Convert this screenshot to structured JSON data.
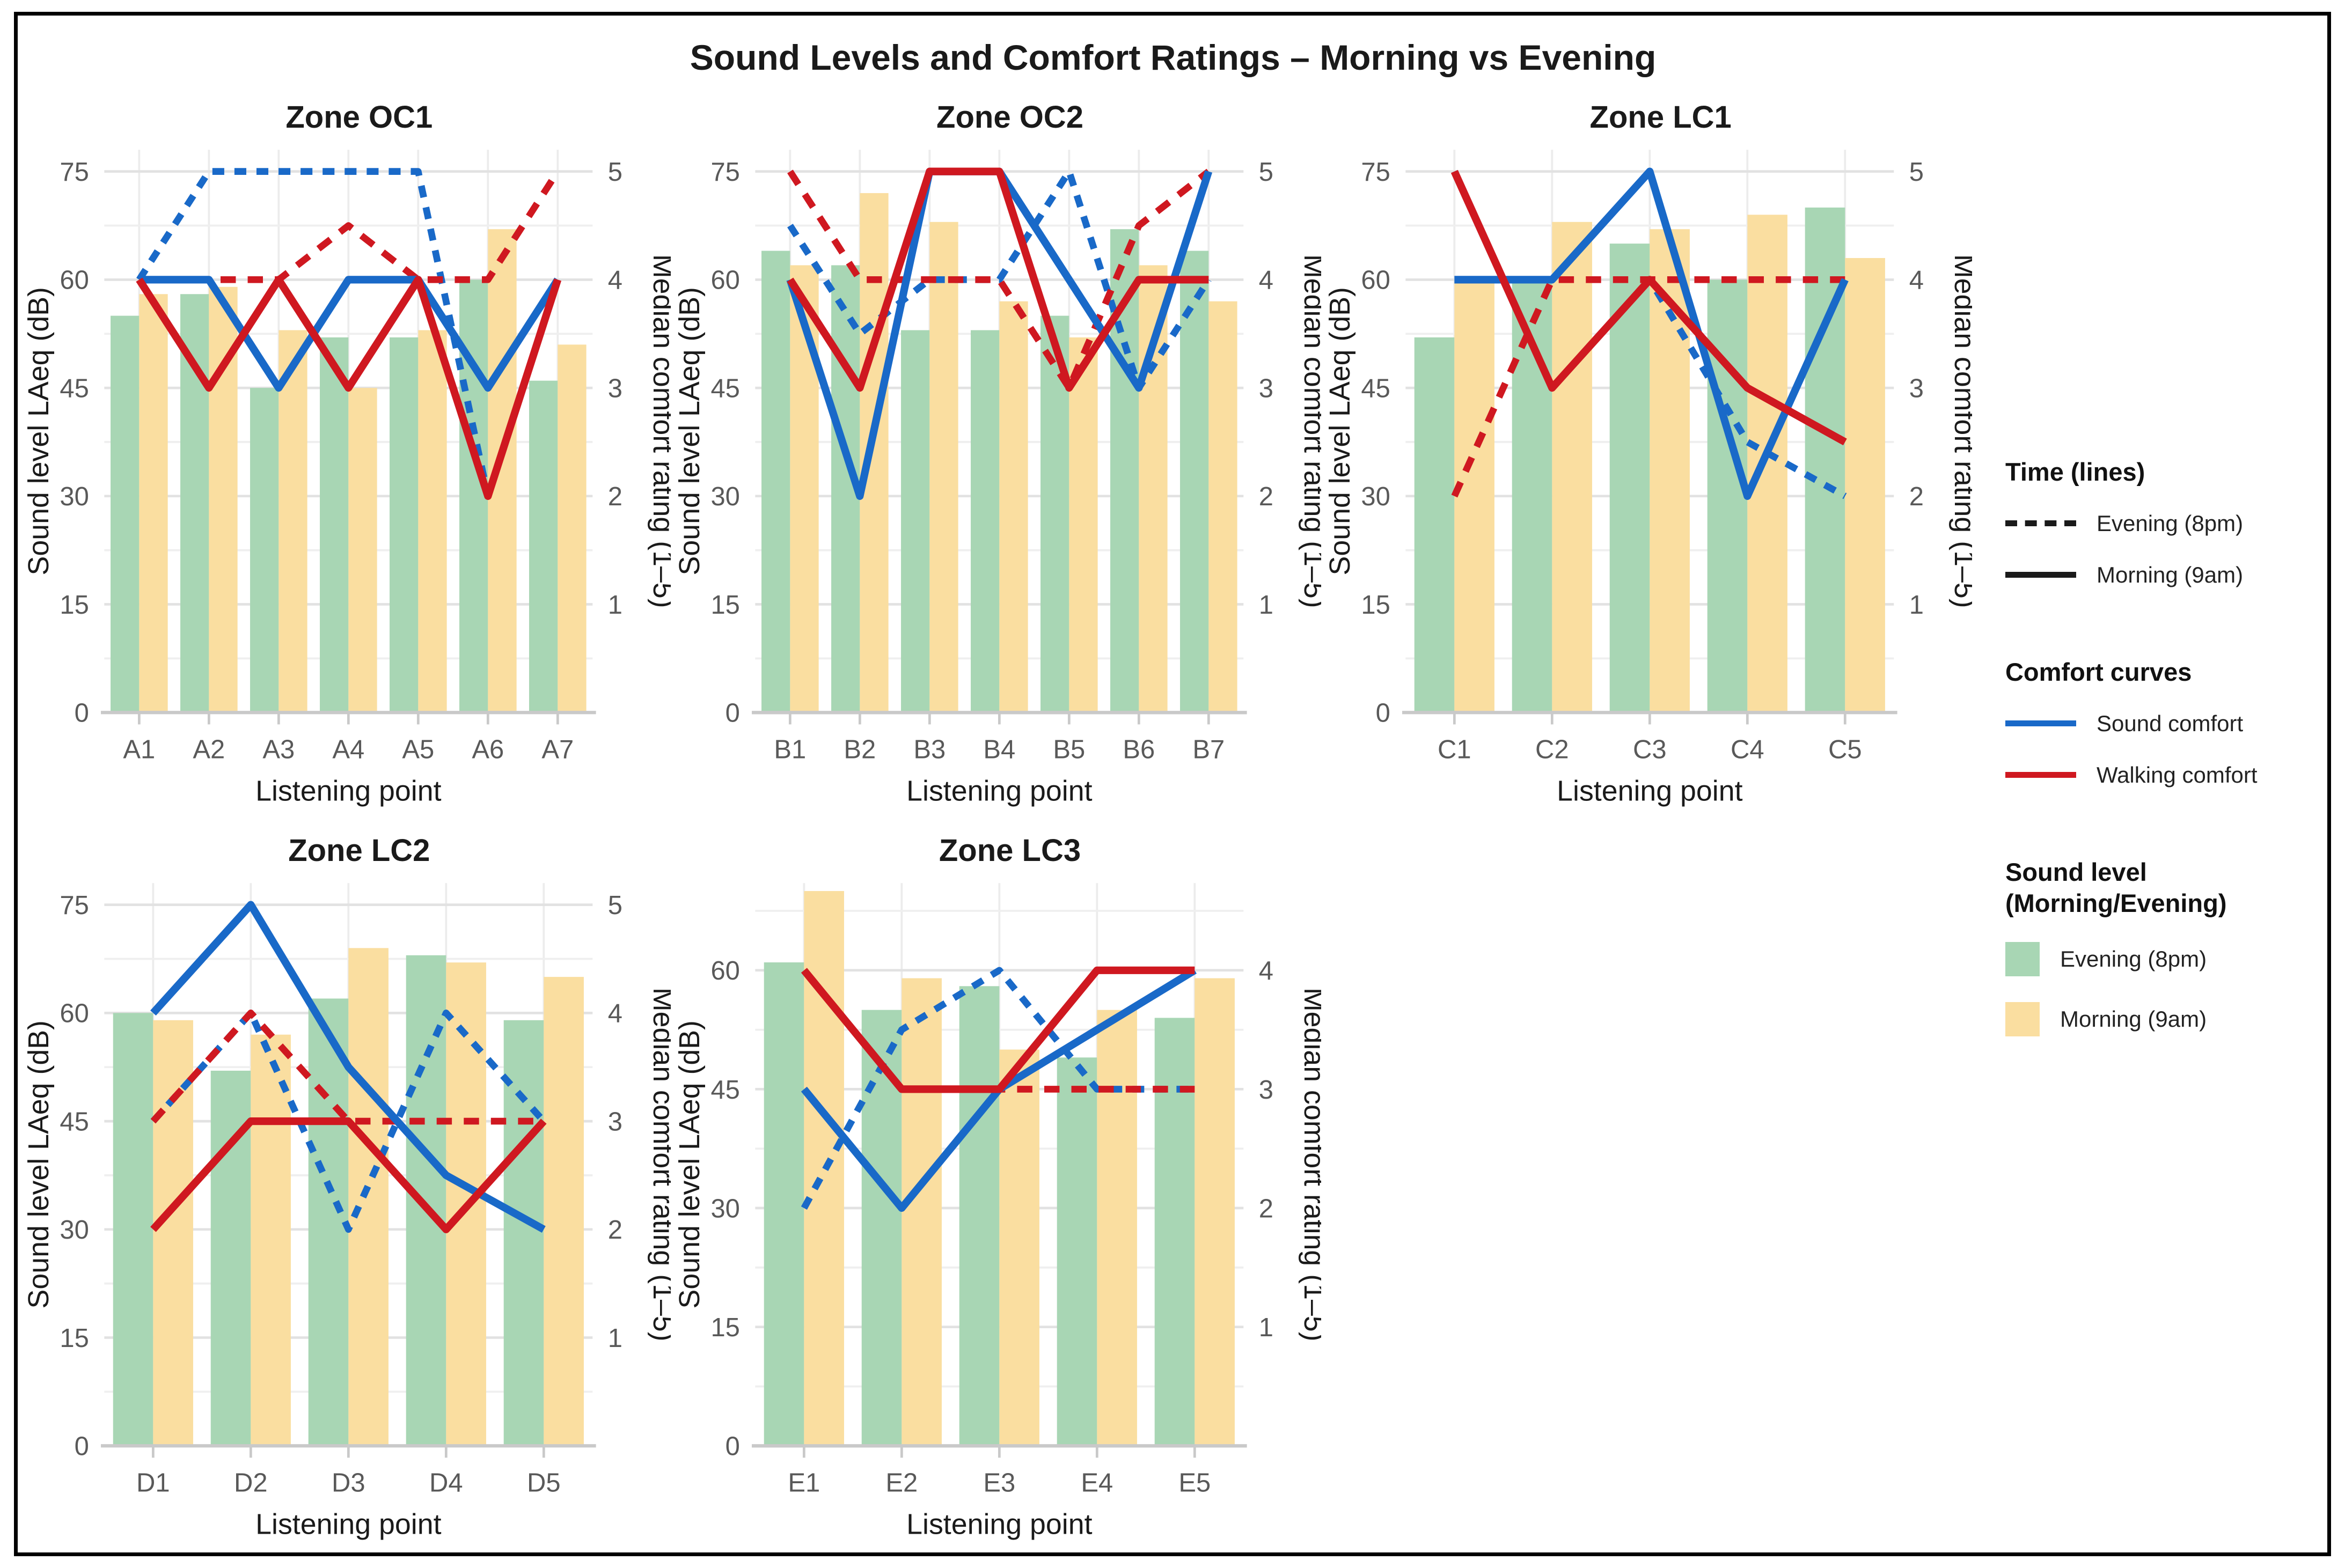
{
  "title": "Sound Levels and Comfort Ratings – Morning vs Evening",
  "axes": {
    "left": "Sound level LAeq (dB)",
    "right": "Median comfort rating (1–5)",
    "x": "Listening point"
  },
  "colors": {
    "evening_bar": "#a8d6b4",
    "morning_bar": "#fadea0",
    "sound": "#1969c8",
    "walking": "#cf1820",
    "grid_major": "#e2e2e2",
    "grid_minor": "#efefef",
    "baseline": "#c9c9c9",
    "axis_text": "#595959",
    "text": "#1a1a1a"
  },
  "legend": {
    "time": {
      "header": "Time (lines)",
      "items": [
        {
          "label": "Evening (8pm)",
          "line_style": "dashed",
          "color_ref": "text"
        },
        {
          "label": "Morning (9am)",
          "line_style": "solid",
          "color_ref": "text"
        }
      ]
    },
    "curves": {
      "header": "Comfort curves",
      "items": [
        {
          "label": "Sound comfort",
          "line_style": "solid",
          "color_ref": "sound"
        },
        {
          "label": "Walking comfort",
          "line_style": "solid",
          "color_ref": "walking"
        }
      ]
    },
    "bars": {
      "header": "Sound level (Morning/Evening)",
      "items": [
        {
          "label": "Evening (8pm)",
          "swatch": true,
          "color_ref": "evening_bar"
        },
        {
          "label": "Morning (9am)",
          "swatch": true,
          "color_ref": "morning_bar"
        }
      ]
    }
  },
  "chart_data": [
    {
      "type": "combo (grouped bars = dB, lines = comfort rating 1–5 plotted at rating×15 dB)",
      "title": "Zone OC1",
      "categories": [
        "A1",
        "A2",
        "A3",
        "A4",
        "A5",
        "A6",
        "A7"
      ],
      "ylim": [
        0,
        78
      ],
      "yticks": [
        0,
        15,
        30,
        45,
        60,
        75
      ],
      "rticks": [
        1,
        2,
        3,
        4,
        5
      ],
      "bars": {
        "evening": [
          55,
          58,
          45,
          52,
          52,
          60,
          46
        ],
        "morning": [
          58,
          59,
          53,
          45,
          53,
          67,
          51
        ]
      },
      "lines": {
        "sound_morning": [
          4,
          4,
          3,
          4,
          4,
          3,
          4
        ],
        "sound_evening": [
          4,
          5,
          5,
          5,
          5,
          2,
          4
        ],
        "walking_morning": [
          4,
          3,
          4,
          3,
          4,
          2,
          4
        ],
        "walking_evening": [
          4,
          4,
          4,
          4.5,
          4,
          4,
          5
        ]
      }
    },
    {
      "type": "combo (grouped bars = dB, lines = comfort rating 1–5 plotted at rating×15 dB)",
      "title": "Zone OC2",
      "categories": [
        "B1",
        "B2",
        "B3",
        "B4",
        "B5",
        "B6",
        "B7"
      ],
      "ylim": [
        0,
        78
      ],
      "yticks": [
        0,
        15,
        30,
        45,
        60,
        75
      ],
      "rticks": [
        1,
        2,
        3,
        4,
        5
      ],
      "bars": {
        "evening": [
          64,
          62,
          53,
          53,
          55,
          67,
          64
        ],
        "morning": [
          62,
          72,
          68,
          57,
          52,
          62,
          57
        ]
      },
      "lines": {
        "sound_morning": [
          4,
          2,
          5,
          5,
          4,
          3,
          5
        ],
        "sound_evening": [
          4.5,
          3.5,
          4,
          4,
          5,
          3,
          4
        ],
        "walking_morning": [
          4,
          3,
          5,
          5,
          3,
          4,
          4
        ],
        "walking_evening": [
          5,
          4,
          4,
          4,
          3,
          4.5,
          5
        ]
      }
    },
    {
      "type": "combo (grouped bars = dB, lines = comfort rating 1–5 plotted at rating×15 dB)",
      "title": "Zone LC1",
      "categories": [
        "C1",
        "C2",
        "C3",
        "C4",
        "C5"
      ],
      "ylim": [
        0,
        78
      ],
      "yticks": [
        0,
        15,
        30,
        45,
        60,
        75
      ],
      "rticks": [
        1,
        2,
        3,
        4,
        5
      ],
      "bars": {
        "evening": [
          52,
          60,
          65,
          60,
          70
        ],
        "morning": [
          60,
          68,
          67,
          69,
          63
        ]
      },
      "lines": {
        "sound_morning": [
          4,
          4,
          5,
          2,
          4
        ],
        "sound_evening": [
          5,
          3,
          4,
          2.5,
          2
        ],
        "walking_morning": [
          5,
          3,
          4,
          3,
          2.5
        ],
        "walking_evening": [
          2,
          4,
          4,
          4,
          4
        ]
      }
    },
    {
      "type": "combo (grouped bars = dB, lines = comfort rating 1–5 plotted at rating×15 dB)",
      "title": "Zone LC2",
      "categories": [
        "D1",
        "D2",
        "D3",
        "D4",
        "D5"
      ],
      "ylim": [
        0,
        78
      ],
      "yticks": [
        0,
        15,
        30,
        45,
        60,
        75
      ],
      "rticks": [
        1,
        2,
        3,
        4,
        5
      ],
      "bars": {
        "evening": [
          60,
          52,
          62,
          68,
          59
        ],
        "morning": [
          59,
          57,
          69,
          67,
          65
        ]
      },
      "lines": {
        "sound_morning": [
          4,
          5,
          3.5,
          2.5,
          2
        ],
        "sound_evening": [
          3,
          4,
          2,
          4,
          3
        ],
        "walking_morning": [
          2,
          3,
          3,
          2,
          3
        ],
        "walking_evening": [
          3,
          4,
          3,
          3,
          3
        ]
      }
    },
    {
      "type": "combo (grouped bars = dB, lines = comfort rating 1–5 plotted at rating×15 dB)",
      "title": "Zone LC3",
      "categories": [
        "E1",
        "E2",
        "E3",
        "E4",
        "E5"
      ],
      "ylim": [
        0,
        71
      ],
      "yticks": [
        0,
        15,
        30,
        45,
        60
      ],
      "rticks": [
        1,
        2,
        3,
        4
      ],
      "bars": {
        "evening": [
          61,
          55,
          58,
          49,
          54
        ],
        "morning": [
          70,
          59,
          50,
          55,
          59
        ]
      },
      "lines": {
        "sound_morning": [
          3,
          2,
          3,
          3.5,
          4
        ],
        "sound_evening": [
          2,
          3.5,
          4,
          3,
          3
        ],
        "walking_morning": [
          4,
          3,
          3,
          4,
          4
        ],
        "walking_evening": [
          3,
          2,
          3,
          3,
          3
        ]
      }
    }
  ]
}
